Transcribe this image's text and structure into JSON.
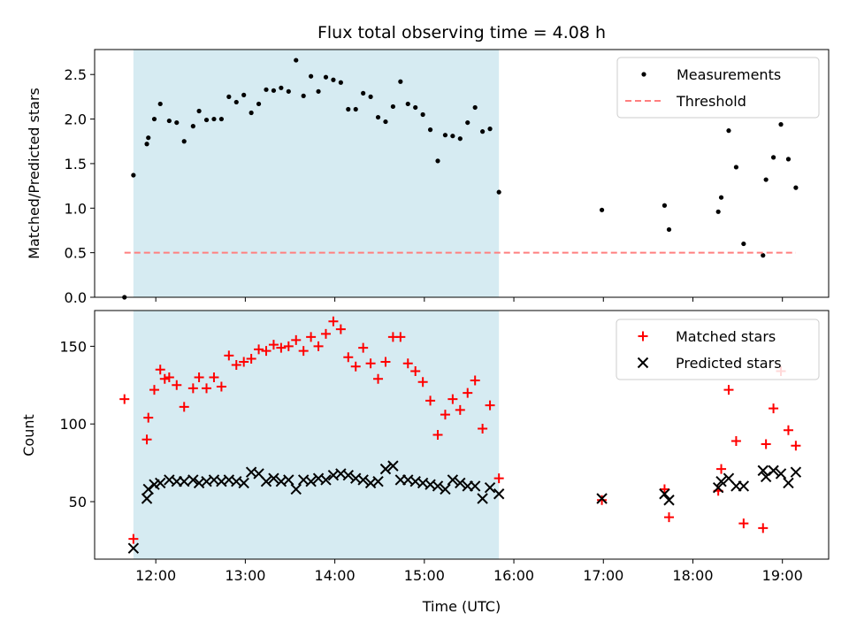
{
  "chart_data": [
    {
      "type": "scatter",
      "title": "Flux total observing time = 4.08 h",
      "xlabel": "",
      "ylabel": "Matched/Predicted stars",
      "xlim": [
        "11:19",
        "19:31"
      ],
      "ylim": [
        0,
        2.78
      ],
      "yticks": [
        0.0,
        0.5,
        1.0,
        1.5,
        2.0,
        2.5
      ],
      "ytick_labels": [
        "0.0",
        "0.5",
        "1.0",
        "1.5",
        "2.0",
        "2.5"
      ],
      "shaded_interval": [
        "11:45",
        "15:50"
      ],
      "legend": "top-right",
      "series": [
        {
          "name": "Measurements",
          "marker": "dot",
          "color": "#000000",
          "points": [
            [
              "11:39",
              0.0
            ],
            [
              "11:45",
              1.37
            ],
            [
              "11:54",
              1.72
            ],
            [
              "11:55",
              1.79
            ],
            [
              "11:59",
              2.0
            ],
            [
              "12:03",
              2.17
            ],
            [
              "12:09",
              1.98
            ],
            [
              "12:14",
              1.96
            ],
            [
              "12:19",
              1.75
            ],
            [
              "12:25",
              1.92
            ],
            [
              "12:29",
              2.09
            ],
            [
              "12:34",
              1.99
            ],
            [
              "12:39",
              2.0
            ],
            [
              "12:44",
              2.0
            ],
            [
              "12:49",
              2.25
            ],
            [
              "12:54",
              2.19
            ],
            [
              "12:59",
              2.27
            ],
            [
              "13:04",
              2.07
            ],
            [
              "13:09",
              2.17
            ],
            [
              "13:14",
              2.33
            ],
            [
              "13:19",
              2.32
            ],
            [
              "13:24",
              2.35
            ],
            [
              "13:29",
              2.31
            ],
            [
              "13:34",
              2.66
            ],
            [
              "13:39",
              2.26
            ],
            [
              "13:44",
              2.48
            ],
            [
              "13:49",
              2.31
            ],
            [
              "13:54",
              2.47
            ],
            [
              "13:59",
              2.44
            ],
            [
              "14:04",
              2.41
            ],
            [
              "14:09",
              2.11
            ],
            [
              "14:14",
              2.11
            ],
            [
              "14:19",
              2.29
            ],
            [
              "14:24",
              2.25
            ],
            [
              "14:29",
              2.02
            ],
            [
              "14:34",
              1.97
            ],
            [
              "14:39",
              2.14
            ],
            [
              "14:44",
              2.42
            ],
            [
              "14:49",
              2.17
            ],
            [
              "14:54",
              2.13
            ],
            [
              "14:59",
              2.05
            ],
            [
              "15:04",
              1.88
            ],
            [
              "15:09",
              1.53
            ],
            [
              "15:14",
              1.82
            ],
            [
              "15:19",
              1.81
            ],
            [
              "15:24",
              1.78
            ],
            [
              "15:29",
              1.96
            ],
            [
              "15:34",
              2.13
            ],
            [
              "15:39",
              1.86
            ],
            [
              "15:44",
              1.89
            ],
            [
              "15:50",
              1.18
            ],
            [
              "16:59",
              0.98
            ],
            [
              "17:41",
              1.03
            ],
            [
              "17:44",
              0.76
            ],
            [
              "18:17",
              0.96
            ],
            [
              "18:19",
              1.12
            ],
            [
              "18:24",
              1.87
            ],
            [
              "18:29",
              1.46
            ],
            [
              "18:34",
              0.6
            ],
            [
              "18:47",
              0.47
            ],
            [
              "18:49",
              1.32
            ],
            [
              "18:54",
              1.57
            ],
            [
              "18:59",
              1.94
            ],
            [
              "19:04",
              1.55
            ],
            [
              "19:09",
              1.23
            ]
          ]
        },
        {
          "name": "Threshold",
          "marker": "dashed-line",
          "color": "#ff7f7f",
          "points": [
            [
              "11:39",
              0.5
            ],
            [
              "19:09",
              0.5
            ]
          ]
        }
      ]
    },
    {
      "type": "scatter",
      "xlabel": "Time (UTC)",
      "ylabel": "Count",
      "xlim": [
        "11:19",
        "19:31"
      ],
      "ylim": [
        13,
        173
      ],
      "yticks": [
        50,
        100,
        150
      ],
      "ytick_labels": [
        "50",
        "100",
        "150"
      ],
      "xticks": [
        "12:00",
        "13:00",
        "14:00",
        "15:00",
        "16:00",
        "17:00",
        "18:00",
        "19:00"
      ],
      "shaded_interval": [
        "11:45",
        "15:50"
      ],
      "legend": "top-right",
      "series": [
        {
          "name": "Matched stars",
          "marker": "plus",
          "color": "#ff0000",
          "points": [
            [
              "11:39",
              116
            ],
            [
              "11:45",
              26
            ],
            [
              "11:54",
              90
            ],
            [
              "11:55",
              104
            ],
            [
              "11:59",
              122
            ],
            [
              "12:03",
              135
            ],
            [
              "12:06",
              129
            ],
            [
              "12:09",
              130
            ],
            [
              "12:14",
              125
            ],
            [
              "12:19",
              111
            ],
            [
              "12:25",
              123
            ],
            [
              "12:29",
              130
            ],
            [
              "12:34",
              123
            ],
            [
              "12:39",
              130
            ],
            [
              "12:44",
              124
            ],
            [
              "12:49",
              144
            ],
            [
              "12:54",
              138
            ],
            [
              "12:59",
              140
            ],
            [
              "13:04",
              142
            ],
            [
              "13:09",
              148
            ],
            [
              "13:14",
              147
            ],
            [
              "13:19",
              151
            ],
            [
              "13:24",
              149
            ],
            [
              "13:29",
              150
            ],
            [
              "13:34",
              154
            ],
            [
              "13:39",
              147
            ],
            [
              "13:44",
              156
            ],
            [
              "13:49",
              150
            ],
            [
              "13:54",
              158
            ],
            [
              "13:59",
              166
            ],
            [
              "14:04",
              161
            ],
            [
              "14:09",
              143
            ],
            [
              "14:14",
              137
            ],
            [
              "14:19",
              149
            ],
            [
              "14:24",
              139
            ],
            [
              "14:29",
              129
            ],
            [
              "14:34",
              140
            ],
            [
              "14:39",
              156
            ],
            [
              "14:44",
              156
            ],
            [
              "14:49",
              139
            ],
            [
              "14:54",
              134
            ],
            [
              "14:59",
              127
            ],
            [
              "15:04",
              115
            ],
            [
              "15:09",
              93
            ],
            [
              "15:14",
              106
            ],
            [
              "15:19",
              116
            ],
            [
              "15:24",
              109
            ],
            [
              "15:29",
              120
            ],
            [
              "15:34",
              128
            ],
            [
              "15:39",
              97
            ],
            [
              "15:44",
              112
            ],
            [
              "15:50",
              65
            ],
            [
              "16:59",
              51
            ],
            [
              "17:41",
              58
            ],
            [
              "17:44",
              40
            ],
            [
              "18:17",
              57
            ],
            [
              "18:19",
              71
            ],
            [
              "18:24",
              122
            ],
            [
              "18:29",
              89
            ],
            [
              "18:34",
              36
            ],
            [
              "18:47",
              33
            ],
            [
              "18:49",
              87
            ],
            [
              "18:54",
              110
            ],
            [
              "18:59",
              134
            ],
            [
              "19:04",
              96
            ],
            [
              "19:09",
              86
            ]
          ]
        },
        {
          "name": "Predicted stars",
          "marker": "x",
          "color": "#000000",
          "points": [
            [
              "11:45",
              20
            ],
            [
              "11:54",
              52
            ],
            [
              "11:55",
              58
            ],
            [
              "11:59",
              61
            ],
            [
              "12:03",
              62
            ],
            [
              "12:09",
              64
            ],
            [
              "12:14",
              63
            ],
            [
              "12:19",
              63
            ],
            [
              "12:25",
              64
            ],
            [
              "12:29",
              62
            ],
            [
              "12:34",
              63
            ],
            [
              "12:39",
              64
            ],
            [
              "12:44",
              63
            ],
            [
              "12:49",
              64
            ],
            [
              "12:54",
              63
            ],
            [
              "12:59",
              62
            ],
            [
              "13:04",
              69
            ],
            [
              "13:09",
              68
            ],
            [
              "13:14",
              63
            ],
            [
              "13:19",
              65
            ],
            [
              "13:24",
              63
            ],
            [
              "13:29",
              64
            ],
            [
              "13:34",
              58
            ],
            [
              "13:39",
              64
            ],
            [
              "13:44",
              63
            ],
            [
              "13:49",
              65
            ],
            [
              "13:54",
              64
            ],
            [
              "13:59",
              67
            ],
            [
              "14:04",
              68
            ],
            [
              "14:09",
              67
            ],
            [
              "14:14",
              65
            ],
            [
              "14:19",
              64
            ],
            [
              "14:24",
              62
            ],
            [
              "14:29",
              63
            ],
            [
              "14:34",
              71
            ],
            [
              "14:39",
              73
            ],
            [
              "14:44",
              64
            ],
            [
              "14:49",
              64
            ],
            [
              "14:54",
              63
            ],
            [
              "14:59",
              62
            ],
            [
              "15:04",
              61
            ],
            [
              "15:09",
              60
            ],
            [
              "15:14",
              58
            ],
            [
              "15:19",
              64
            ],
            [
              "15:24",
              62
            ],
            [
              "15:29",
              60
            ],
            [
              "15:34",
              60
            ],
            [
              "15:39",
              52
            ],
            [
              "15:44",
              59
            ],
            [
              "15:50",
              55
            ],
            [
              "16:59",
              52
            ],
            [
              "17:41",
              55
            ],
            [
              "17:44",
              51
            ],
            [
              "18:17",
              59
            ],
            [
              "18:19",
              63
            ],
            [
              "18:24",
              65
            ],
            [
              "18:29",
              60
            ],
            [
              "18:34",
              60
            ],
            [
              "18:47",
              70
            ],
            [
              "18:49",
              66
            ],
            [
              "18:54",
              70
            ],
            [
              "18:59",
              68
            ],
            [
              "19:04",
              62
            ],
            [
              "19:09",
              69
            ]
          ]
        }
      ]
    }
  ]
}
